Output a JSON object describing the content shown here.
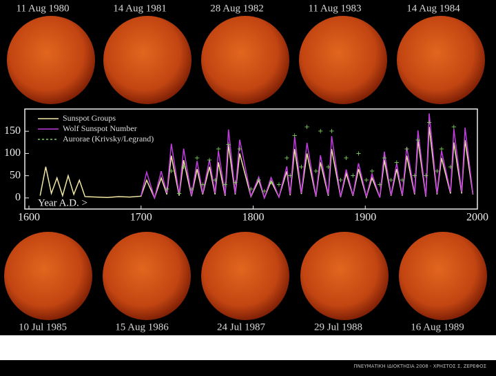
{
  "top_labels": [
    "11 Aug 1980",
    "14 Aug 1981",
    "28 Aug 1982",
    "11 Aug 1983",
    "14 Aug 1984"
  ],
  "bottom_labels": [
    "10 Jul 1985",
    "15 Aug 1986",
    "24 Jul 1987",
    "29 Jul 1988",
    "16 Aug 1989"
  ],
  "footer": "ΠΝΕΥΜΑΤΙΚΗ ΙΔΙΟΚΤΗΣΙΑ 2008 - ΧΡΗΣΤΟΣ Σ. ΖΕΡΕΦΟΣ",
  "chart_data": {
    "type": "line",
    "xlabel": "Year A.D. >",
    "x": [
      1610,
      1615,
      1620,
      1625,
      1630,
      1635,
      1640,
      1645,
      1650,
      1660,
      1670,
      1680,
      1690,
      1700,
      1705,
      1712,
      1718,
      1723,
      1727,
      1734,
      1738,
      1745,
      1750,
      1755,
      1761,
      1766,
      1769,
      1775,
      1778,
      1784,
      1788,
      1798,
      1805,
      1810,
      1816,
      1823,
      1830,
      1833,
      1837,
      1843,
      1848,
      1856,
      1860,
      1867,
      1870,
      1878,
      1883,
      1889,
      1894,
      1901,
      1906,
      1913,
      1917,
      1923,
      1928,
      1933,
      1937,
      1944,
      1947,
      1954,
      1957,
      1964,
      1968,
      1976,
      1979,
      1986,
      1989,
      1996
    ],
    "series": [
      {
        "name": "Sunspot Groups",
        "color": "#f3e7a4",
        "style": "line",
        "values": [
          5,
          70,
          10,
          45,
          5,
          50,
          8,
          40,
          3,
          2,
          1,
          3,
          2,
          4,
          40,
          0,
          45,
          8,
          95,
          5,
          85,
          4,
          65,
          8,
          70,
          8,
          80,
          5,
          120,
          8,
          100,
          3,
          40,
          0,
          38,
          2,
          60,
          6,
          110,
          9,
          100,
          3,
          80,
          5,
          110,
          2,
          55,
          5,
          65,
          2,
          45,
          1,
          85,
          5,
          65,
          5,
          95,
          8,
          130,
          3,
          160,
          8,
          90,
          10,
          125,
          10,
          130,
          8
        ]
      },
      {
        "name": "Wolf Sunspot Number",
        "color": "#c23be0",
        "style": "line",
        "values": [
          null,
          null,
          null,
          null,
          null,
          null,
          null,
          null,
          null,
          null,
          null,
          null,
          null,
          5,
          58,
          0,
          60,
          11,
          122,
          8,
          111,
          5,
          83,
          10,
          86,
          11,
          106,
          7,
          154,
          10,
          131,
          4,
          47,
          0,
          46,
          2,
          71,
          8,
          138,
          11,
          124,
          4,
          96,
          7,
          139,
          3,
          64,
          6,
          78,
          3,
          54,
          1,
          104,
          6,
          78,
          6,
          114,
          10,
          152,
          4,
          190,
          10,
          106,
          13,
          155,
          13,
          158,
          9
        ]
      },
      {
        "name": "Aurorae (Krivsky/Legrand)",
        "color": "#7fd35a",
        "style": "points",
        "values": [
          null,
          null,
          null,
          null,
          null,
          null,
          null,
          null,
          null,
          null,
          null,
          null,
          null,
          null,
          null,
          null,
          null,
          20,
          60,
          10,
          70,
          20,
          90,
          30,
          85,
          40,
          110,
          30,
          120,
          35,
          110,
          20,
          40,
          15,
          35,
          30,
          90,
          50,
          140,
          70,
          160,
          60,
          150,
          70,
          150,
          40,
          90,
          50,
          100,
          40,
          60,
          30,
          90,
          40,
          80,
          40,
          110,
          50,
          130,
          50,
          170,
          60,
          110,
          70,
          160,
          null,
          null,
          null
        ]
      }
    ],
    "xlim": [
      1600,
      2000
    ],
    "xticks": [
      1600,
      1700,
      1800,
      1900,
      2000
    ],
    "ylim": [
      -25,
      200
    ],
    "yticks": [
      0,
      50,
      100,
      150
    ]
  }
}
